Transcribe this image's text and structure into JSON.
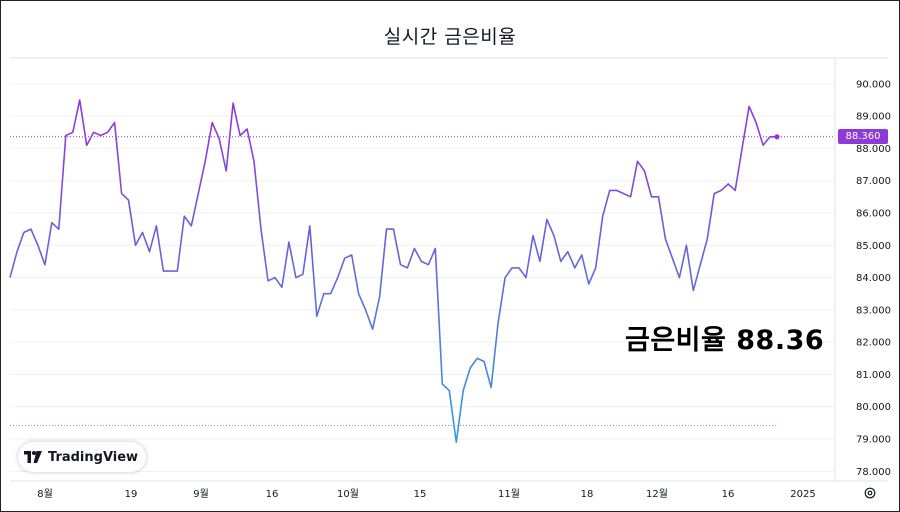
{
  "title": "실시간 금은비율",
  "current_value_badge": "88.360",
  "big_label": "금은비율 88.36",
  "logo_text": "TradingView",
  "colors": {
    "line_top": "#9b30d9",
    "line_bottom": "#2ea0dc",
    "badge": "#8e3ad6",
    "last_price_dots": "#9b30d9",
    "bottom_dotted": "#e07a7a",
    "grid": "#eef0f3"
  },
  "icons": [
    "tradingview-logo-icon",
    "settings-icon"
  ],
  "chart_data": {
    "type": "line",
    "title": "실시간 금은비율",
    "ylim": [
      77.7,
      90.8
    ],
    "yticks": [
      "90.000",
      "89.000",
      "88.000",
      "87.000",
      "86.000",
      "85.000",
      "84.000",
      "83.000",
      "82.000",
      "81.000",
      "80.000",
      "79.000",
      "78.000"
    ],
    "xticks": [
      "8월",
      "19",
      "9월",
      "16",
      "10월",
      "15",
      "11월",
      "18",
      "12월",
      "16",
      "2025"
    ],
    "last_value": 88.36,
    "low_reference": 79.42,
    "grid": true,
    "series": [
      {
        "values": [
          84.0,
          84.8,
          85.4,
          85.5,
          85.0,
          84.4,
          85.7,
          85.5,
          88.4,
          88.5,
          89.5,
          88.1,
          88.5,
          88.4,
          88.5,
          88.8,
          86.6,
          86.4,
          85.0,
          85.4,
          84.8,
          85.6,
          84.2,
          84.2,
          84.2,
          85.9,
          85.6,
          86.6,
          87.6,
          88.8,
          88.3,
          87.3,
          89.4,
          88.4,
          88.6,
          87.6,
          85.5,
          83.9,
          84.0,
          83.7,
          85.1,
          84.0,
          84.1,
          85.6,
          82.8,
          83.5,
          83.5,
          84.0,
          84.6,
          84.7,
          83.5,
          83.0,
          82.4,
          83.4,
          85.5,
          85.5,
          84.4,
          84.3,
          84.9,
          84.5,
          84.4,
          84.9,
          80.7,
          80.5,
          78.9,
          80.5,
          81.2,
          81.5,
          81.4,
          80.6,
          82.6,
          84.0,
          84.3,
          84.3,
          84.0,
          85.3,
          84.5,
          85.8,
          85.3,
          84.5,
          84.8,
          84.3,
          84.7,
          83.8,
          84.3,
          85.9,
          86.7,
          86.7,
          86.6,
          86.5,
          87.6,
          87.3,
          86.5,
          86.5,
          85.2,
          84.6,
          84.0,
          85.0,
          83.6,
          84.4,
          85.2,
          86.6,
          86.7,
          86.9,
          86.7,
          88.0,
          89.3,
          88.8,
          88.1,
          88.36,
          88.36
        ]
      }
    ]
  }
}
